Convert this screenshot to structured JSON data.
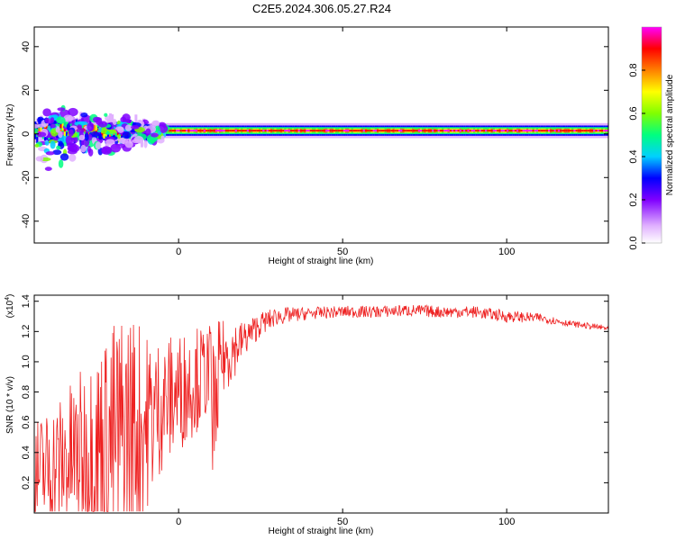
{
  "title": "C2E5.2024.306.05.27.R24",
  "chart_data": [
    {
      "type": "heatmap",
      "xlabel": "Height of straight line (km)",
      "ylabel": "Frequency (Hz)",
      "xlim": [
        -44,
        131
      ],
      "ylim": [
        -50,
        49
      ],
      "xticks": [
        0,
        50,
        100
      ],
      "yticks": [
        -40,
        -20,
        0,
        20,
        40
      ],
      "grid": false,
      "colorbar": {
        "label": "Normalized spectral amplitude",
        "range": [
          0,
          1
        ],
        "ticks": [
          "0.0",
          "0.2",
          "0.4",
          "0.6",
          "0.8"
        ],
        "colors": [
          "#ffffff",
          "#e0b0ff",
          "#8000ff",
          "#0000ff",
          "#00d0ff",
          "#00ff80",
          "#80ff00",
          "#ffff00",
          "#ff8000",
          "#ff0000",
          "#ff00ff"
        ]
      },
      "band": {
        "center_hz": 1.5,
        "halfwidth_hz": 1.8,
        "noise_region_x": [
          -44,
          -10
        ],
        "noise_region_freq": [
          -35,
          12
        ]
      }
    },
    {
      "type": "line",
      "xlabel": "Height of straight line (km)",
      "ylabel": "SNR (10 * v/v)",
      "multiplier": "(x10",
      "multiplier_exp": "4",
      "xlim": [
        -44,
        131
      ],
      "ylim": [
        0,
        1.44
      ],
      "xticks": [
        0,
        50,
        100
      ],
      "yticks": [
        0.2,
        0.4,
        0.6,
        0.8,
        1.0,
        1.2,
        1.4
      ],
      "color": "#ee2222",
      "grid": false,
      "envelope": {
        "x": [
          -44,
          -30,
          -20,
          -15,
          -10,
          -5,
          0,
          5,
          10,
          15,
          20,
          25,
          30,
          40,
          50,
          60,
          70,
          80,
          90,
          100,
          110,
          120,
          131
        ],
        "mean": [
          0.25,
          0.38,
          0.48,
          0.52,
          0.6,
          0.72,
          0.8,
          0.88,
          0.95,
          1.05,
          1.15,
          1.25,
          1.3,
          1.32,
          1.33,
          1.33,
          1.34,
          1.33,
          1.33,
          1.3,
          1.29,
          1.25,
          1.22
        ],
        "spread": [
          0.18,
          0.28,
          0.4,
          0.45,
          0.3,
          0.22,
          0.2,
          0.18,
          0.15,
          0.12,
          0.06,
          0.04,
          0.03,
          0.02,
          0.02,
          0.02,
          0.02,
          0.02,
          0.02,
          0.02,
          0.015,
          0.01,
          0.01
        ]
      }
    }
  ]
}
